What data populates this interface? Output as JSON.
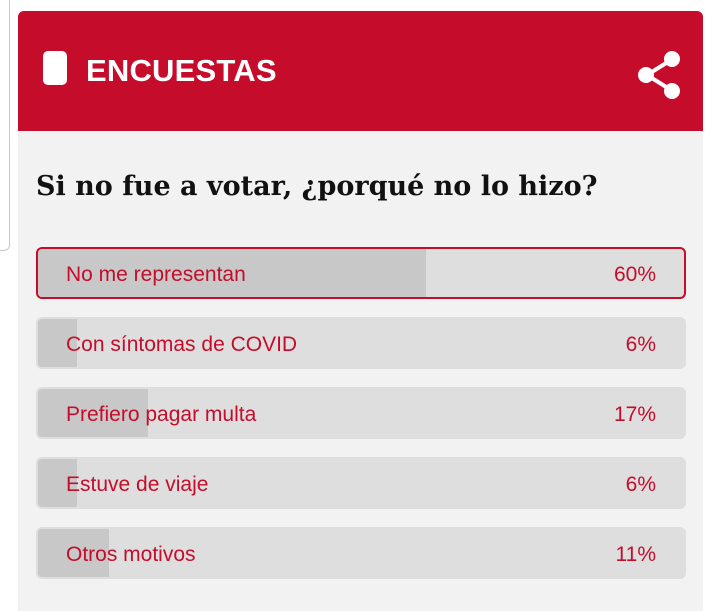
{
  "header": {
    "title": "ENCUESTAS",
    "icon": "document-icon",
    "share_icon": "share-icon",
    "color": "#c60c2b"
  },
  "poll": {
    "question": "Si no fue a votar, ¿porqué no lo hizo?",
    "options": [
      {
        "label": "No me representan",
        "percent_label": "60%",
        "percent": 60,
        "selected": true
      },
      {
        "label": "Con síntomas de COVID",
        "percent_label": "6%",
        "percent": 6,
        "selected": false
      },
      {
        "label": "Prefiero pagar multa",
        "percent_label": "17%",
        "percent": 17,
        "selected": false
      },
      {
        "label": "Estuve de viaje",
        "percent_label": "6%",
        "percent": 6,
        "selected": false
      },
      {
        "label": "Otros motivos",
        "percent_label": "11%",
        "percent": 11,
        "selected": false
      }
    ]
  }
}
